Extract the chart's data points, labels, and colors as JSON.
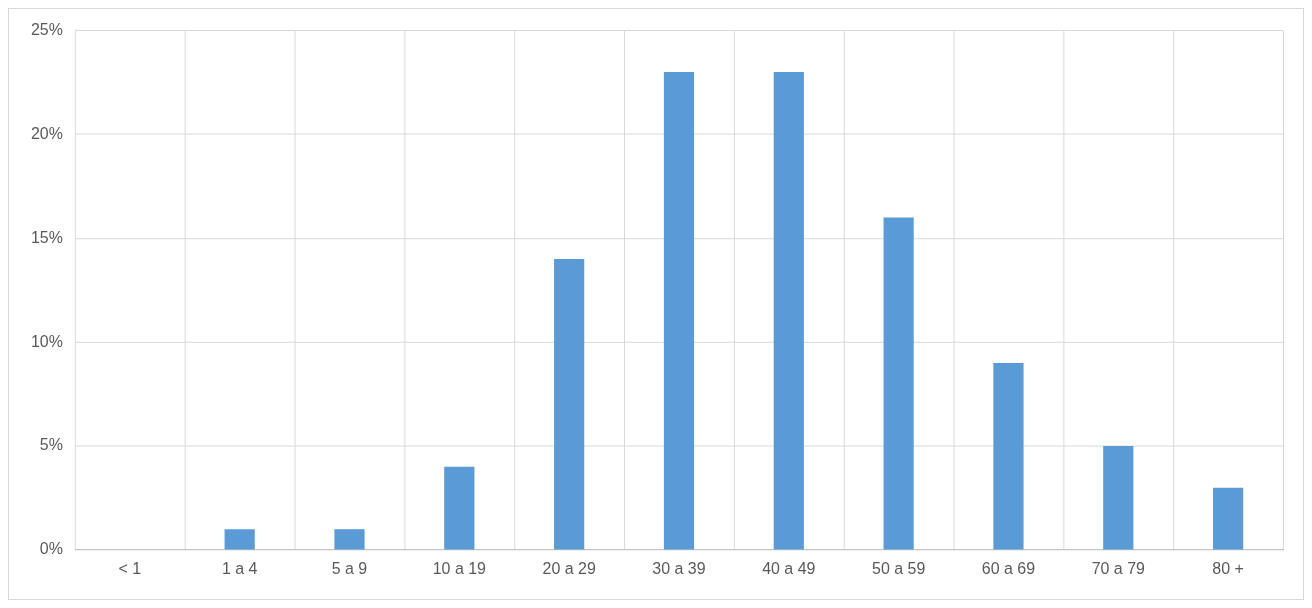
{
  "chart_data": {
    "type": "bar",
    "categories": [
      "< 1",
      "1 a 4",
      "5 a 9",
      "10 a 19",
      "20 a 29",
      "30 a 39",
      "40 a 49",
      "50 a 59",
      "60 a 69",
      "70 a 79",
      "80 +"
    ],
    "values": [
      0,
      1,
      1,
      4,
      14,
      23,
      23,
      16,
      9,
      5,
      3
    ],
    "color": "#5b9bd5",
    "ylim": [
      0,
      25
    ],
    "yticks": [
      {
        "value": 0,
        "label": "0%"
      },
      {
        "value": 5,
        "label": "5%"
      },
      {
        "value": 10,
        "label": "10%"
      },
      {
        "value": 15,
        "label": "15%"
      },
      {
        "value": 20,
        "label": "20%"
      },
      {
        "value": 25,
        "label": "25%"
      }
    ],
    "grid": true
  }
}
